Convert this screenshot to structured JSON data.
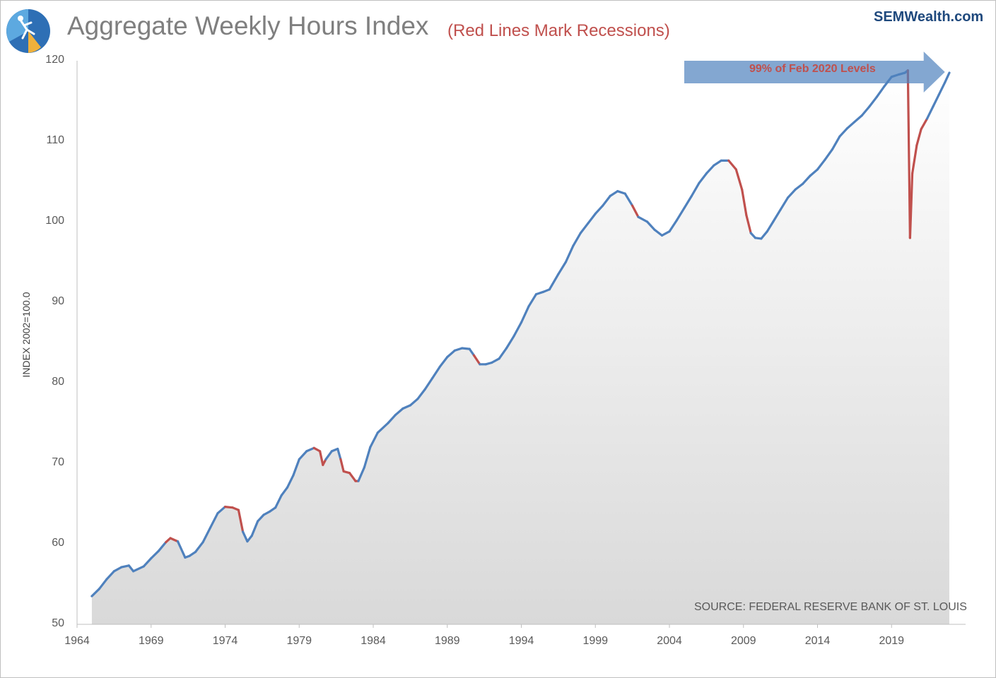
{
  "header": {
    "title": "Aggregate Weekly Hours Index",
    "subtitle": "(Red Lines Mark Recessions)",
    "brand": "SEMWealth.com"
  },
  "annotations": {
    "callout": "99% of Feb 2020 Levels",
    "source": "SOURCE:  FEDERAL RESERVE BANK OF ST. LOUIS"
  },
  "colors": {
    "line": "#4f81bd",
    "recession": "#c0504d",
    "arrow": "#4f81bd",
    "area": "#d9d9d9",
    "title": "#7f7f7f",
    "brand": "#1f497d"
  },
  "chart_data": {
    "type": "area",
    "title": "Aggregate Weekly Hours Index",
    "subtitle": "(Red Lines Mark Recessions)",
    "xlabel": "",
    "ylabel": "INDEX 2002=100.0",
    "xlim": [
      1964,
      2024
    ],
    "ylim": [
      50,
      120
    ],
    "xticks": [
      1964,
      1969,
      1974,
      1979,
      1984,
      1989,
      1994,
      1999,
      2004,
      2009,
      2014,
      2019
    ],
    "yticks": [
      50,
      60,
      70,
      80,
      90,
      100,
      110,
      120
    ],
    "grid": false,
    "series": [
      {
        "values": [
          [
            1965.0,
            53.5
          ],
          [
            1965.5,
            54.4
          ],
          [
            1966.0,
            55.6
          ],
          [
            1966.5,
            56.6
          ],
          [
            1967.0,
            57.1
          ],
          [
            1967.5,
            57.3
          ],
          [
            1967.8,
            56.6
          ],
          [
            1968.5,
            57.2
          ],
          [
            1969.0,
            58.2
          ],
          [
            1969.5,
            59.1
          ],
          [
            1970.0,
            60.2
          ],
          [
            1970.3,
            60.7
          ],
          [
            1970.8,
            60.3
          ],
          [
            1971.3,
            58.3
          ],
          [
            1971.6,
            58.5
          ],
          [
            1972.0,
            59.0
          ],
          [
            1972.5,
            60.2
          ],
          [
            1973.0,
            62.0
          ],
          [
            1973.5,
            63.8
          ],
          [
            1974.0,
            64.6
          ],
          [
            1974.5,
            64.5
          ],
          [
            1974.9,
            64.2
          ],
          [
            1975.2,
            61.5
          ],
          [
            1975.5,
            60.3
          ],
          [
            1975.8,
            61.0
          ],
          [
            1976.2,
            62.8
          ],
          [
            1976.6,
            63.6
          ],
          [
            1977.0,
            64.0
          ],
          [
            1977.4,
            64.5
          ],
          [
            1977.8,
            66.0
          ],
          [
            1978.2,
            67.0
          ],
          [
            1978.6,
            68.5
          ],
          [
            1979.0,
            70.5
          ],
          [
            1979.5,
            71.5
          ],
          [
            1980.0,
            71.9
          ],
          [
            1980.4,
            71.5
          ],
          [
            1980.6,
            69.8
          ],
          [
            1980.8,
            70.5
          ],
          [
            1981.2,
            71.5
          ],
          [
            1981.6,
            71.8
          ],
          [
            1981.8,
            70.5
          ],
          [
            1982.0,
            69.0
          ],
          [
            1982.4,
            68.8
          ],
          [
            1982.8,
            67.8
          ],
          [
            1983.0,
            67.8
          ],
          [
            1983.4,
            69.5
          ],
          [
            1983.8,
            72.0
          ],
          [
            1984.3,
            73.8
          ],
          [
            1985.0,
            75.0
          ],
          [
            1985.5,
            76.0
          ],
          [
            1986.0,
            76.8
          ],
          [
            1986.5,
            77.2
          ],
          [
            1987.0,
            78.0
          ],
          [
            1987.5,
            79.2
          ],
          [
            1988.0,
            80.6
          ],
          [
            1988.5,
            82.0
          ],
          [
            1989.0,
            83.2
          ],
          [
            1989.5,
            84.0
          ],
          [
            1990.0,
            84.3
          ],
          [
            1990.5,
            84.2
          ],
          [
            1990.8,
            83.4
          ],
          [
            1991.2,
            82.3
          ],
          [
            1991.6,
            82.3
          ],
          [
            1992.0,
            82.5
          ],
          [
            1992.5,
            83.0
          ],
          [
            1993.0,
            84.3
          ],
          [
            1993.5,
            85.8
          ],
          [
            1994.0,
            87.5
          ],
          [
            1994.5,
            89.5
          ],
          [
            1995.0,
            91.0
          ],
          [
            1995.5,
            91.3
          ],
          [
            1995.9,
            91.6
          ],
          [
            1996.5,
            93.5
          ],
          [
            1997.0,
            95.0
          ],
          [
            1997.5,
            97.0
          ],
          [
            1998.0,
            98.6
          ],
          [
            1998.5,
            99.8
          ],
          [
            1999.0,
            101.0
          ],
          [
            1999.5,
            102.0
          ],
          [
            2000.0,
            103.2
          ],
          [
            2000.5,
            103.8
          ],
          [
            2001.0,
            103.5
          ],
          [
            2001.5,
            102.0
          ],
          [
            2001.9,
            100.6
          ],
          [
            2002.5,
            100.0
          ],
          [
            2003.0,
            99.0
          ],
          [
            2003.5,
            98.3
          ],
          [
            2004.0,
            98.8
          ],
          [
            2004.5,
            100.2
          ],
          [
            2005.0,
            101.7
          ],
          [
            2005.5,
            103.2
          ],
          [
            2006.0,
            104.8
          ],
          [
            2006.5,
            106.0
          ],
          [
            2007.0,
            107.0
          ],
          [
            2007.5,
            107.6
          ],
          [
            2008.0,
            107.6
          ],
          [
            2008.5,
            106.5
          ],
          [
            2008.9,
            104.0
          ],
          [
            2009.2,
            100.8
          ],
          [
            2009.5,
            98.6
          ],
          [
            2009.8,
            98.0
          ],
          [
            2010.2,
            97.9
          ],
          [
            2010.6,
            98.8
          ],
          [
            2011.0,
            100.0
          ],
          [
            2011.5,
            101.5
          ],
          [
            2012.0,
            103.0
          ],
          [
            2012.5,
            104.0
          ],
          [
            2013.0,
            104.7
          ],
          [
            2013.5,
            105.7
          ],
          [
            2014.0,
            106.5
          ],
          [
            2014.5,
            107.7
          ],
          [
            2015.0,
            109.0
          ],
          [
            2015.5,
            110.6
          ],
          [
            2016.0,
            111.6
          ],
          [
            2016.5,
            112.4
          ],
          [
            2017.0,
            113.2
          ],
          [
            2017.5,
            114.3
          ],
          [
            2018.0,
            115.5
          ],
          [
            2018.5,
            116.8
          ],
          [
            2019.0,
            118.0
          ],
          [
            2019.5,
            118.3
          ],
          [
            2019.9,
            118.5
          ],
          [
            2020.1,
            118.8
          ],
          [
            2020.25,
            98.0
          ],
          [
            2020.4,
            106.0
          ],
          [
            2020.7,
            109.5
          ],
          [
            2021.0,
            111.5
          ],
          [
            2021.4,
            112.8
          ],
          [
            2021.8,
            114.3
          ],
          [
            2022.2,
            115.8
          ],
          [
            2022.6,
            117.3
          ],
          [
            2022.9,
            118.5
          ]
        ]
      }
    ],
    "recessions": [
      [
        1970.0,
        1971.0
      ],
      [
        1974.1,
        1975.3
      ],
      [
        1980.2,
        1980.7
      ],
      [
        1981.7,
        1982.9
      ],
      [
        1990.7,
        1991.3
      ],
      [
        2001.3,
        2001.9
      ],
      [
        2008.0,
        2009.6
      ],
      [
        2020.1,
        2021.5
      ]
    ],
    "arrow": {
      "x_start": 2005.0,
      "x_end": 2022.6,
      "y": 118.6
    }
  }
}
